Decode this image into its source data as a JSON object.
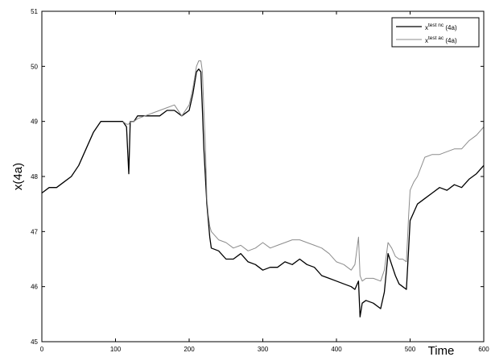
{
  "chart_data": {
    "type": "line",
    "xlabel": "Time",
    "ylabel": "x(4a)",
    "xlim": [
      0,
      600
    ],
    "ylim": [
      45,
      51
    ],
    "xticks": [
      0,
      100,
      200,
      300,
      400,
      500,
      600
    ],
    "yticks": [
      45,
      46,
      47,
      48,
      49,
      50,
      51
    ],
    "grid": false,
    "legend_position": "top-right",
    "series": [
      {
        "name": "x",
        "superscript": "test nc",
        "suffix": " (4a)",
        "color": "#000000",
        "x": [
          0,
          10,
          20,
          30,
          40,
          50,
          60,
          70,
          80,
          90,
          100,
          110,
          115,
          118,
          120,
          125,
          130,
          140,
          150,
          160,
          170,
          180,
          190,
          200,
          205,
          210,
          213,
          216,
          218,
          220,
          224,
          226,
          228,
          230,
          240,
          250,
          260,
          270,
          280,
          290,
          300,
          310,
          320,
          330,
          340,
          350,
          360,
          370,
          380,
          390,
          400,
          410,
          420,
          425,
          430,
          432,
          435,
          440,
          450,
          460,
          465,
          470,
          475,
          480,
          485,
          490,
          495,
          498,
          500,
          505,
          510,
          520,
          530,
          540,
          550,
          560,
          570,
          580,
          590,
          600
        ],
        "y": [
          47.7,
          47.8,
          47.8,
          47.9,
          48.0,
          48.2,
          48.5,
          48.8,
          49.0,
          49.0,
          49.0,
          49.0,
          48.9,
          48.05,
          49.0,
          49.0,
          49.1,
          49.1,
          49.1,
          49.1,
          49.2,
          49.2,
          49.1,
          49.2,
          49.5,
          49.9,
          49.95,
          49.9,
          49.2,
          48.5,
          47.5,
          47.2,
          46.9,
          46.7,
          46.65,
          46.5,
          46.5,
          46.6,
          46.45,
          46.4,
          46.3,
          46.35,
          46.35,
          46.45,
          46.4,
          46.5,
          46.4,
          46.35,
          46.2,
          46.15,
          46.1,
          46.05,
          46.0,
          45.95,
          46.1,
          45.45,
          45.7,
          45.75,
          45.7,
          45.6,
          45.9,
          46.6,
          46.4,
          46.2,
          46.05,
          46.0,
          45.95,
          46.7,
          47.2,
          47.35,
          47.5,
          47.6,
          47.7,
          47.8,
          47.75,
          47.85,
          47.8,
          47.95,
          48.05,
          48.2
        ]
      },
      {
        "name": "x",
        "superscript": "test ac",
        "suffix": " (4a)",
        "color": "#8c8c8c",
        "x": [
          110,
          115,
          118,
          120,
          125,
          130,
          140,
          150,
          160,
          170,
          180,
          190,
          200,
          205,
          210,
          213,
          216,
          218,
          220,
          222,
          224,
          226,
          228,
          230,
          240,
          250,
          260,
          270,
          280,
          290,
          300,
          310,
          320,
          330,
          340,
          350,
          360,
          370,
          380,
          390,
          400,
          410,
          420,
          425,
          430,
          432,
          435,
          440,
          450,
          460,
          465,
          470,
          475,
          480,
          485,
          490,
          495,
          498,
          500,
          505,
          510,
          520,
          530,
          540,
          550,
          560,
          570,
          580,
          590,
          600
        ],
        "y": [
          49.0,
          48.95,
          48.95,
          49.0,
          49.0,
          49.05,
          49.1,
          49.15,
          49.2,
          49.25,
          49.3,
          49.1,
          49.3,
          49.6,
          50.0,
          50.1,
          50.1,
          49.9,
          49.2,
          48.6,
          47.6,
          47.3,
          47.1,
          47.0,
          46.85,
          46.8,
          46.7,
          46.75,
          46.65,
          46.7,
          46.8,
          46.7,
          46.75,
          46.8,
          46.85,
          46.85,
          46.8,
          46.75,
          46.7,
          46.6,
          46.45,
          46.4,
          46.3,
          46.4,
          46.9,
          46.2,
          46.1,
          46.15,
          46.15,
          46.1,
          46.3,
          46.8,
          46.7,
          46.55,
          46.5,
          46.5,
          46.45,
          47.3,
          47.75,
          47.9,
          48.0,
          48.35,
          48.4,
          48.4,
          48.45,
          48.5,
          48.5,
          48.65,
          48.75,
          48.9
        ]
      }
    ]
  }
}
